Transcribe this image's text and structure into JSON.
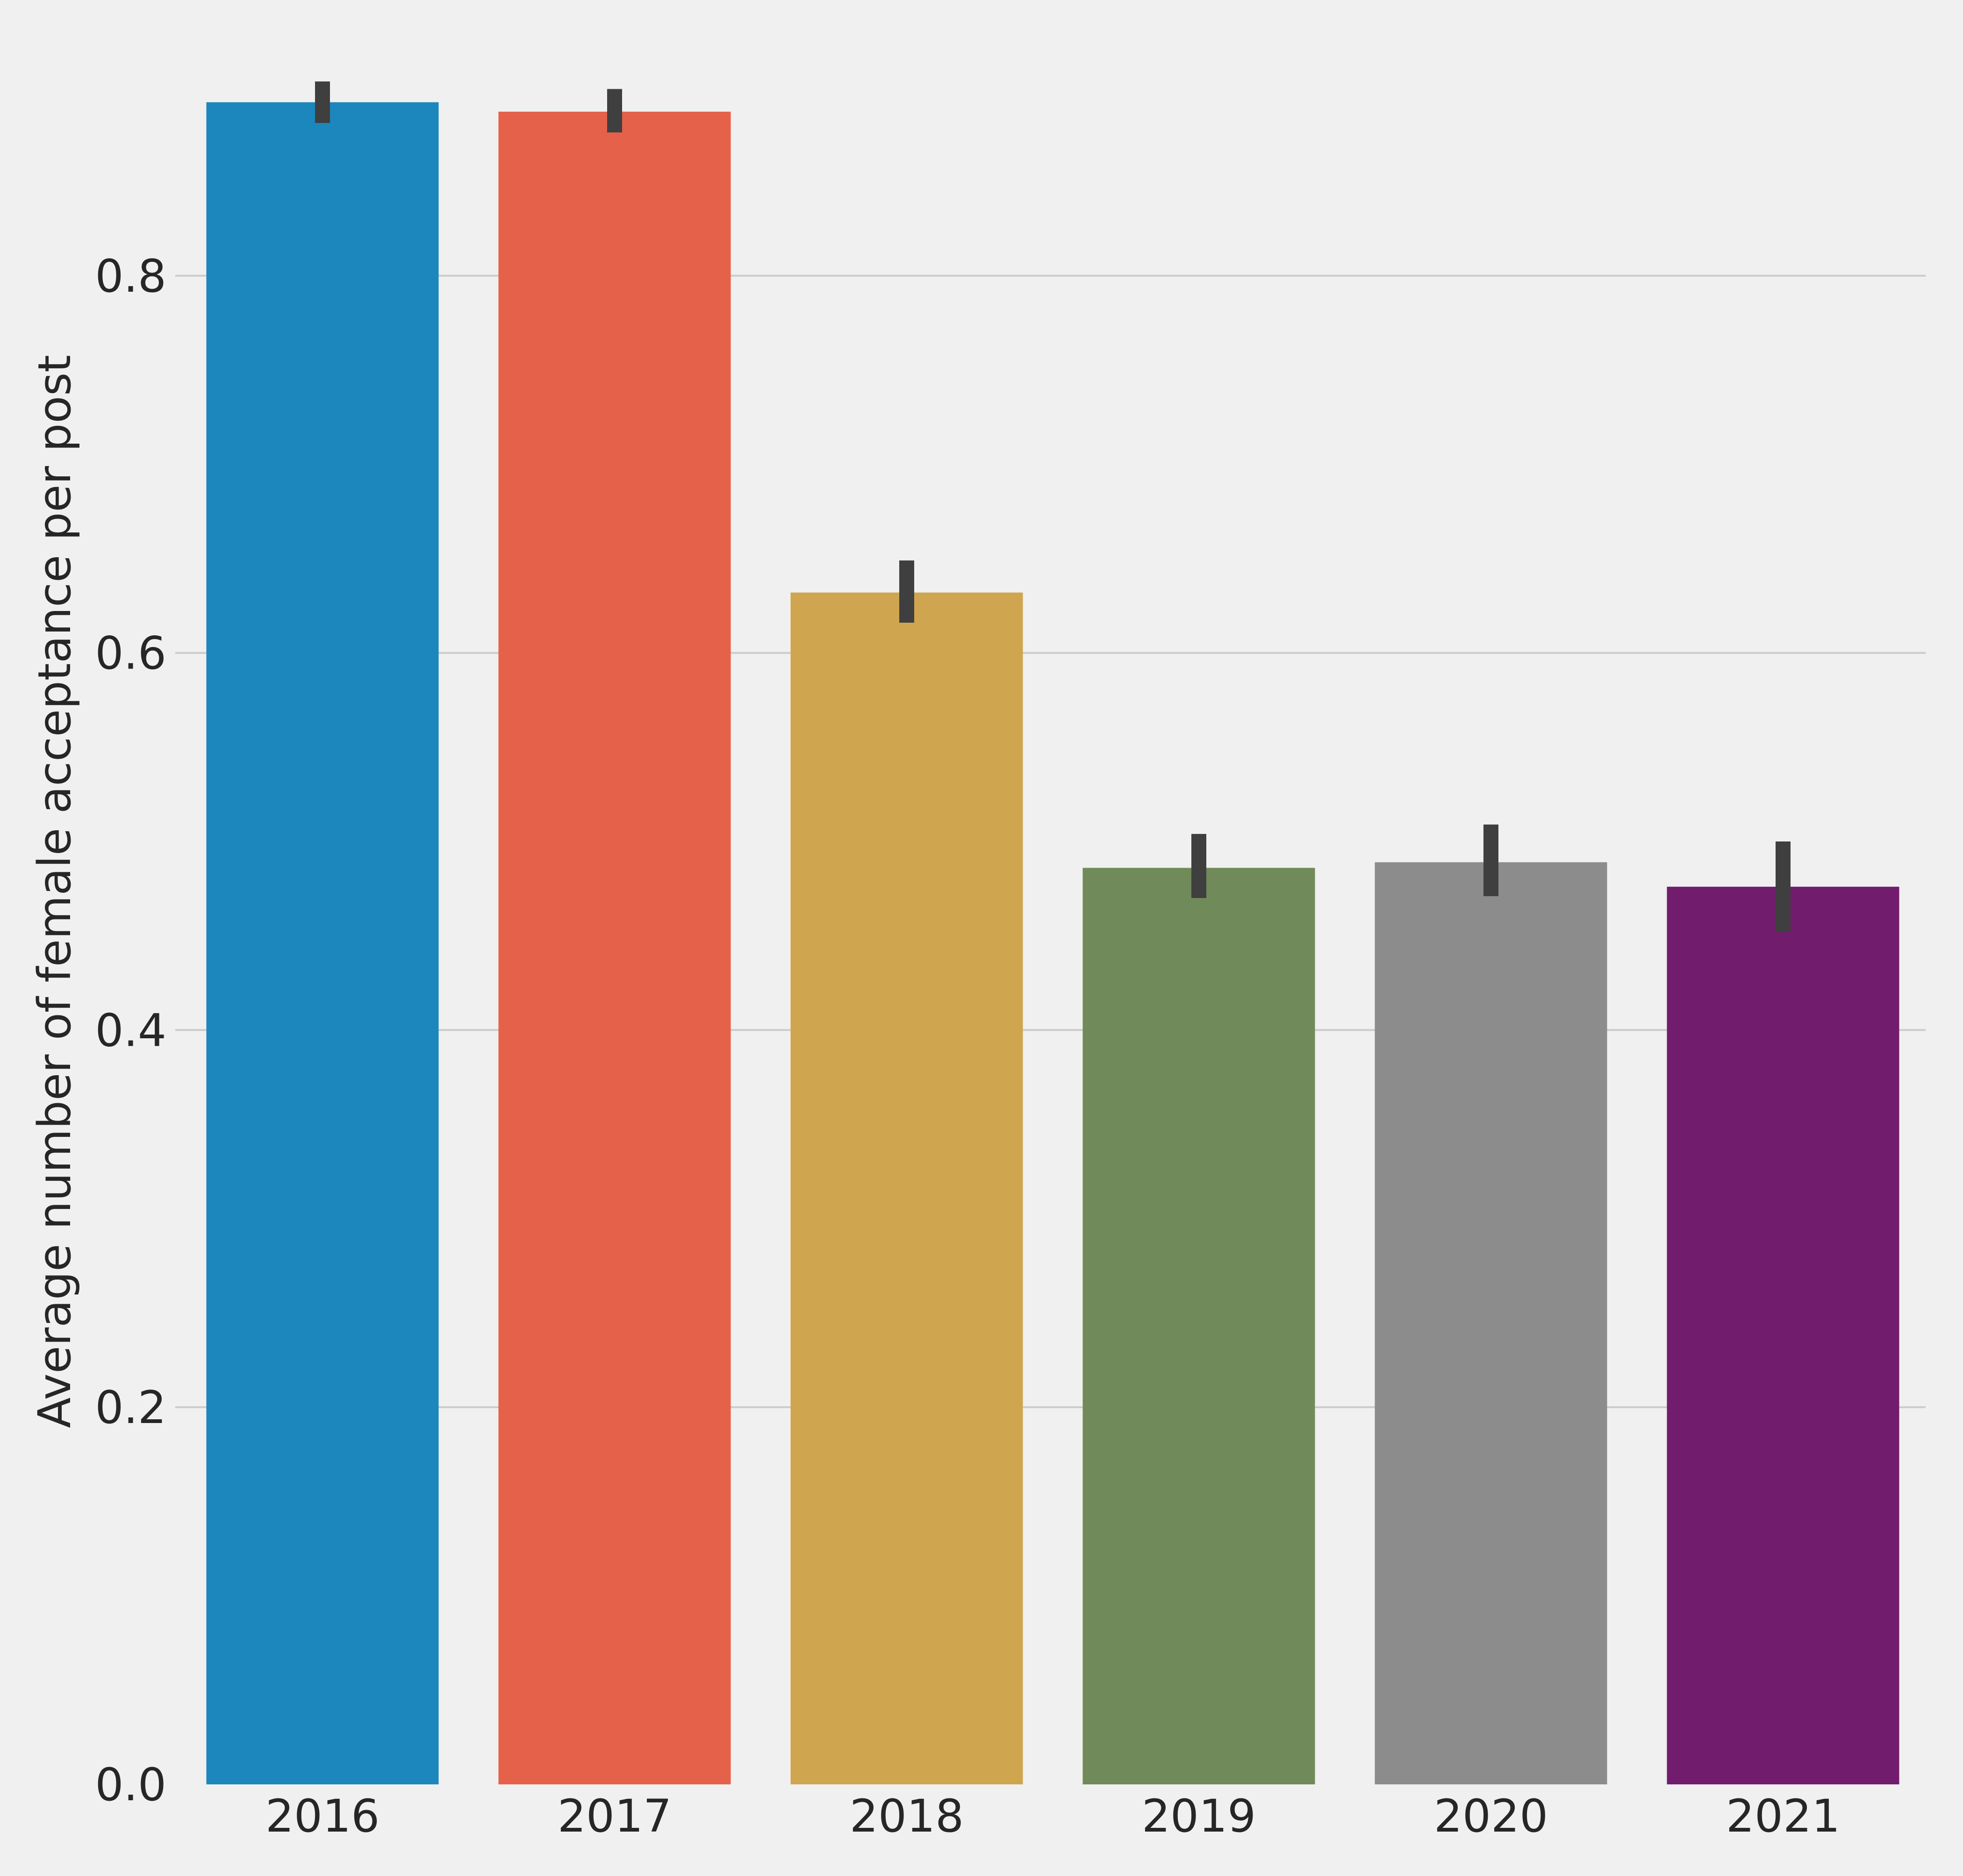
{
  "chart_data": {
    "type": "bar",
    "categories": [
      "2016",
      "2017",
      "2018",
      "2019",
      "2020",
      "2021"
    ],
    "values": [
      0.892,
      0.887,
      0.632,
      0.486,
      0.489,
      0.476
    ],
    "error_bars": [
      [
        0.881,
        0.903
      ],
      [
        0.876,
        0.899
      ],
      [
        0.616,
        0.649
      ],
      [
        0.47,
        0.504
      ],
      [
        0.471,
        0.509
      ],
      [
        0.452,
        0.5
      ]
    ],
    "bar_colors": [
      "#1b87bc",
      "#e5614a",
      "#cfa64f",
      "#718a59",
      "#8c8c8c",
      "#721c6d"
    ],
    "error_bar_color": "#3f3f3f",
    "gridline_color": "#cbcbcb",
    "background_color": "#f0f0f0",
    "title": "",
    "xlabel": "",
    "ylabel": "Average number of female acceptance per post",
    "ylim": [
      0,
      0.925
    ],
    "yticks": [
      0.0,
      0.2,
      0.4,
      0.6,
      0.8
    ],
    "ytick_labels": [
      "0.0",
      "0.2",
      "0.4",
      "0.6",
      "0.8"
    ],
    "grid": "horizontal",
    "legend": "none"
  }
}
